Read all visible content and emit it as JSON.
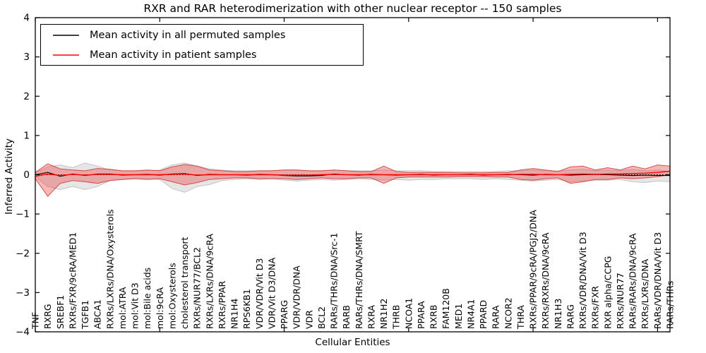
{
  "chart_data": {
    "type": "line",
    "title": "RXR and RAR heterodimerization with other nuclear receptor -- 150 samples",
    "xlabel": "Cellular Entities",
    "ylabel": "Inferred Activity",
    "ylim": [
      -4,
      4
    ],
    "yticks": [
      4,
      3,
      2,
      1,
      0,
      -1,
      -2,
      -3,
      -4
    ],
    "ytick_labels": [
      "4",
      "3",
      "2",
      "1",
      "0",
      "−1",
      "−2",
      "−3",
      "−4"
    ],
    "xtick_indices": [
      0,
      10,
      20,
      30,
      40,
      50
    ],
    "grid": false,
    "legend_position": "upper left",
    "legend": [
      {
        "label": "Mean activity in all permuted samples",
        "color": "#000000"
      },
      {
        "label": "Mean activity in patient samples",
        "color": "#ff0000"
      }
    ],
    "categories": [
      "TNF",
      "RXRG",
      "SREBF1",
      "RXRs/FXR/9cRA/MED1",
      "TGFB1",
      "ABCA1",
      "RXRs/LXRs/DNA/Oxysterols",
      "mol:ATRA",
      "mol:Vit D3",
      "mol:Bile acids",
      "mol:9cRA",
      "mol:Oxysterols",
      "cholesterol transport",
      "RXRs/NUR77/BCL2",
      "RXRs/LXRs/DNA/9cRA",
      "RXRs/PPAR",
      "NR1H4",
      "RPS6KB1",
      "VDR/VDR/Vit D3",
      "VDR/Vit D3/DNA",
      "PPARG",
      "VDR/VDR/DNA",
      "VDR",
      "BCL2",
      "RARs/THRs/DNA/Src-1",
      "RARB",
      "RARs/THRs/DNA/SMRT",
      "RXRA",
      "NR1H2",
      "THRB",
      "NCOA1",
      "PPARA",
      "RXRB",
      "FAM120B",
      "MED1",
      "NR4A1",
      "PPARD",
      "RARA",
      "NCOR2",
      "THRA",
      "RXRs/PPAR/9cRA/PGJ2/DNA",
      "RXRs/RXRs/DNA/9cRA",
      "NR1H3",
      "RARG",
      "RXRs/VDR/DNA/Vit D3",
      "RXRs/FXR",
      "RXR alpha/CCPG",
      "RXRs/NUR77",
      "RARs/RARs/DNA/9cRA",
      "RXRs/LXRs/DNA",
      "RARs/VDR/DNA/Vit D3",
      "RARs/THRs"
    ],
    "series": [
      {
        "name": "Mean activity in all permuted samples",
        "id": "permuted-mean-line",
        "color": "#000000",
        "width": 1.1,
        "values": [
          0.0,
          0.06,
          -0.04,
          0.02,
          -0.02,
          0.02,
          0.02,
          -0.01,
          0.0,
          0.01,
          -0.01,
          0.02,
          0.03,
          -0.02,
          0.01,
          0.0,
          0.0,
          -0.01,
          0.01,
          0.0,
          -0.02,
          -0.03,
          -0.03,
          -0.02,
          0.02,
          0.0,
          -0.01,
          0.01,
          0.0,
          -0.01,
          0.0,
          0.01,
          -0.01,
          0.0,
          0.0,
          0.01,
          -0.01,
          0.0,
          0.01,
          0.0,
          -0.01,
          0.01,
          0.0,
          -0.01,
          0.0,
          0.01,
          0.0,
          -0.01,
          -0.02,
          -0.01,
          -0.02,
          -0.02
        ]
      },
      {
        "name": "Mean activity in patient samples",
        "id": "patient-mean-line",
        "color": "#ff0000",
        "width": 1.4,
        "values": [
          -0.04,
          0.02,
          -0.02,
          0.01,
          -0.01,
          0.01,
          0.01,
          0.0,
          0.0,
          0.0,
          0.0,
          0.01,
          0.02,
          -0.01,
          0.0,
          0.0,
          0.0,
          0.0,
          0.0,
          0.0,
          -0.01,
          -0.01,
          -0.01,
          0.0,
          0.01,
          0.0,
          0.0,
          0.0,
          0.0,
          0.0,
          0.0,
          0.0,
          0.0,
          0.0,
          0.0,
          0.0,
          0.0,
          0.0,
          0.0,
          0.01,
          0.01,
          0.0,
          0.0,
          0.01,
          0.02,
          0.01,
          0.02,
          0.02,
          0.03,
          0.04,
          0.06,
          0.09
        ]
      }
    ],
    "bands": [
      {
        "id": "permuted-range-band",
        "fill": "rgba(130,130,130,0.20)",
        "edge": "rgba(130,130,130,0.40)",
        "upper": [
          0.05,
          0.2,
          0.25,
          0.18,
          0.3,
          0.22,
          0.12,
          0.1,
          0.1,
          0.1,
          0.12,
          0.25,
          0.3,
          0.22,
          0.15,
          0.12,
          0.1,
          0.1,
          0.1,
          0.1,
          0.12,
          0.12,
          0.1,
          0.1,
          0.12,
          0.1,
          0.1,
          0.1,
          0.12,
          0.1,
          0.1,
          0.1,
          0.08,
          0.08,
          0.08,
          0.08,
          0.08,
          0.08,
          0.1,
          0.1,
          0.12,
          0.1,
          0.1,
          0.12,
          0.14,
          0.1,
          0.12,
          0.1,
          0.14,
          0.1,
          0.12,
          0.08
        ],
        "lower": [
          -0.05,
          -0.3,
          -0.38,
          -0.3,
          -0.38,
          -0.3,
          -0.15,
          -0.12,
          -0.1,
          -0.1,
          -0.12,
          -0.35,
          -0.45,
          -0.3,
          -0.25,
          -0.15,
          -0.12,
          -0.1,
          -0.12,
          -0.1,
          -0.14,
          -0.16,
          -0.14,
          -0.12,
          -0.14,
          -0.12,
          -0.1,
          -0.12,
          -0.14,
          -0.12,
          -0.14,
          -0.12,
          -0.12,
          -0.1,
          -0.1,
          -0.1,
          -0.12,
          -0.1,
          -0.12,
          -0.14,
          -0.16,
          -0.14,
          -0.12,
          -0.18,
          -0.16,
          -0.14,
          -0.14,
          -0.12,
          -0.18,
          -0.2,
          -0.16,
          -0.18
        ]
      },
      {
        "id": "patient-range-band",
        "fill": "rgba(236,62,62,0.38)",
        "edge": "rgba(205,35,35,0.75)",
        "upper": [
          0.06,
          0.28,
          0.15,
          0.12,
          0.1,
          0.16,
          0.14,
          0.1,
          0.1,
          0.12,
          0.1,
          0.2,
          0.26,
          0.22,
          0.12,
          0.1,
          0.08,
          0.08,
          0.1,
          0.1,
          0.12,
          0.12,
          0.1,
          0.1,
          0.12,
          0.1,
          0.08,
          0.08,
          0.22,
          0.08,
          0.06,
          0.06,
          0.06,
          0.06,
          0.05,
          0.05,
          0.05,
          0.06,
          0.06,
          0.12,
          0.16,
          0.12,
          0.08,
          0.2,
          0.22,
          0.12,
          0.18,
          0.12,
          0.22,
          0.15,
          0.25,
          0.22
        ],
        "lower": [
          -0.1,
          -0.55,
          -0.22,
          -0.15,
          -0.18,
          -0.22,
          -0.15,
          -0.12,
          -0.1,
          -0.12,
          -0.1,
          -0.18,
          -0.26,
          -0.2,
          -0.12,
          -0.1,
          -0.08,
          -0.08,
          -0.1,
          -0.1,
          -0.1,
          -0.12,
          -0.1,
          -0.08,
          -0.1,
          -0.1,
          -0.08,
          -0.08,
          -0.22,
          -0.08,
          -0.06,
          -0.06,
          -0.06,
          -0.06,
          -0.05,
          -0.05,
          -0.05,
          -0.06,
          -0.06,
          -0.12,
          -0.14,
          -0.1,
          -0.08,
          -0.22,
          -0.18,
          -0.12,
          -0.12,
          -0.08,
          -0.1,
          -0.08,
          -0.05,
          0.0
        ]
      }
    ],
    "zero_line": {
      "value": 0,
      "style": "dotted",
      "color": "#000000"
    }
  }
}
